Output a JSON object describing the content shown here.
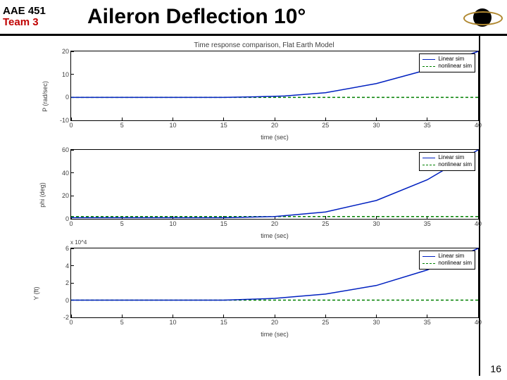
{
  "header": {
    "course": "AAE 451",
    "team": "Team 3",
    "title": "Aileron Deflection 10°"
  },
  "slide_number": "16",
  "supertitle": "Time response comparison, Flat Earth Model",
  "legend": {
    "linear": "Linear sim",
    "nonlinear": "nonlinear sim"
  },
  "panels": [
    {
      "ylabel": "P (rad/sec)",
      "xlabel": "time (sec)",
      "ylim": [
        -10,
        20
      ],
      "yticks": [
        -10,
        0,
        10,
        20
      ],
      "xlim": [
        0,
        40
      ],
      "xticks": [
        0,
        5,
        10,
        15,
        20,
        25,
        30,
        35,
        40
      ],
      "exp_note": null,
      "series": {
        "linear": {
          "color": "#0020c0",
          "dash": null,
          "points": [
            [
              0,
              0
            ],
            [
              5,
              0
            ],
            [
              10,
              0
            ],
            [
              15,
              0
            ],
            [
              18,
              0.2
            ],
            [
              21,
              0.6
            ],
            [
              25,
              2
            ],
            [
              30,
              6
            ],
            [
              35,
              12
            ],
            [
              40,
              20
            ]
          ]
        },
        "nonlinear": {
          "color": "#008000",
          "dash": "4,3",
          "points": [
            [
              0,
              0
            ],
            [
              40,
              0
            ]
          ]
        }
      }
    },
    {
      "ylabel": "phi (deg)",
      "xlabel": "time (sec)",
      "ylim": [
        0,
        60
      ],
      "yticks": [
        0,
        20,
        40,
        60
      ],
      "xlim": [
        0,
        40
      ],
      "xticks": [
        0,
        5,
        10,
        15,
        20,
        25,
        30,
        35,
        40
      ],
      "exp_note": null,
      "series": {
        "linear": {
          "color": "#0020c0",
          "dash": null,
          "points": [
            [
              0,
              1
            ],
            [
              5,
              1
            ],
            [
              10,
              1
            ],
            [
              15,
              1
            ],
            [
              20,
              2
            ],
            [
              25,
              6
            ],
            [
              30,
              16
            ],
            [
              35,
              34
            ],
            [
              40,
              60
            ]
          ]
        },
        "nonlinear": {
          "color": "#008000",
          "dash": "4,3",
          "points": [
            [
              0,
              2
            ],
            [
              40,
              2
            ]
          ]
        }
      }
    },
    {
      "ylabel": "Y (ft)",
      "xlabel": "time (sec)",
      "ylim": [
        -2,
        6
      ],
      "yticks": [
        -2,
        0,
        2,
        4,
        6
      ],
      "xlim": [
        0,
        40
      ],
      "xticks": [
        0,
        5,
        10,
        15,
        20,
        25,
        30,
        35,
        40
      ],
      "exp_note": "x 10^4",
      "series": {
        "linear": {
          "color": "#0020c0",
          "dash": null,
          "points": [
            [
              0,
              0
            ],
            [
              5,
              0
            ],
            [
              10,
              0
            ],
            [
              15,
              0
            ],
            [
              20,
              0.2
            ],
            [
              25,
              0.7
            ],
            [
              30,
              1.7
            ],
            [
              35,
              3.5
            ],
            [
              40,
              6
            ]
          ]
        },
        "nonlinear": {
          "color": "#008000",
          "dash": "4,3",
          "points": [
            [
              0,
              0
            ],
            [
              40,
              0
            ]
          ]
        }
      }
    }
  ],
  "styling": {
    "line_width": 1.5,
    "bg": "#ffffff",
    "axis_color": "#000000",
    "tick_font_size": 9
  }
}
